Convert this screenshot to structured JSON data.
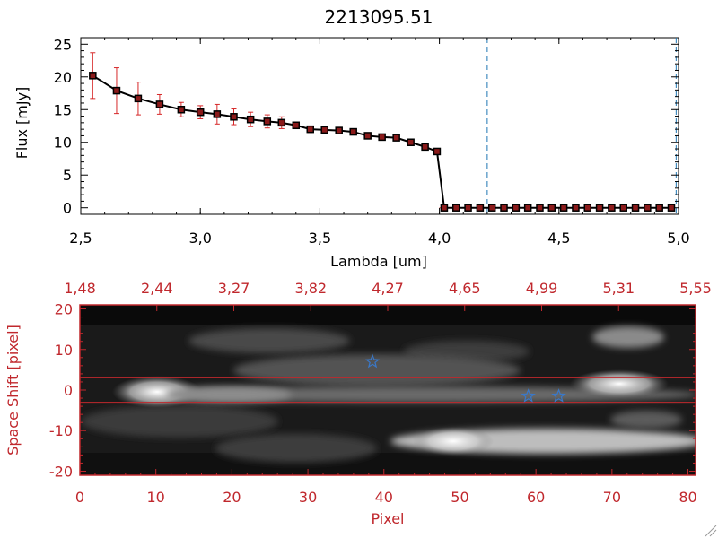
{
  "chart_data": [
    {
      "type": "line",
      "title": "2213095.51",
      "xlabel": "Lambda [um]",
      "ylabel": "Flux [mJy]",
      "xlim": [
        2.5,
        5.0
      ],
      "ylim": [
        -1,
        26
      ],
      "x_ticks": [
        "2.5",
        "3.0",
        "3.5",
        "4.0",
        "4.5",
        "5.0"
      ],
      "y_ticks": [
        "0",
        "5",
        "10",
        "15",
        "20",
        "25"
      ],
      "vlines": [
        4.2,
        4.99
      ],
      "series": [
        {
          "x": [
            2.55,
            2.65,
            2.74,
            2.83,
            2.92,
            3.0,
            3.07,
            3.14,
            3.21,
            3.28,
            3.34,
            3.4,
            3.46,
            3.52,
            3.58,
            3.64,
            3.7,
            3.76,
            3.82,
            3.88,
            3.94,
            3.99,
            4.02,
            4.07,
            4.12,
            4.17,
            4.22,
            4.27,
            4.32,
            4.37,
            4.42,
            4.47,
            4.52,
            4.57,
            4.62,
            4.67,
            4.72,
            4.77,
            4.82,
            4.87,
            4.92,
            4.97
          ],
          "y": [
            20.2,
            17.9,
            16.7,
            15.8,
            15.0,
            14.6,
            14.3,
            13.9,
            13.5,
            13.2,
            13.0,
            12.6,
            12.0,
            11.9,
            11.8,
            11.6,
            11.0,
            10.8,
            10.7,
            10.0,
            9.3,
            8.6,
            0.0,
            0.0,
            0.0,
            0.0,
            0.0,
            0.0,
            0.0,
            0.0,
            0.0,
            0.0,
            0.0,
            0.0,
            0.0,
            0.0,
            0.0,
            0.0,
            0.0,
            0.0,
            0.0,
            0.0
          ],
          "yerr": [
            3.5,
            3.5,
            2.5,
            1.5,
            1.1,
            1.0,
            1.5,
            1.2,
            1.1,
            1.0,
            0.9,
            0.5,
            0.5,
            0.5,
            0.5,
            0.4,
            0.4,
            0.4,
            0.4,
            0.4,
            0.4,
            0.3,
            0,
            0,
            0,
            0,
            0,
            0,
            0,
            0,
            0,
            0,
            0,
            0,
            0,
            0,
            0,
            0,
            0,
            0,
            0,
            0
          ]
        }
      ],
      "colors": {
        "line": "#000000",
        "marker": "#8b1a1a",
        "errorbar": "#d62728",
        "vline": "#1f77b4"
      }
    },
    {
      "type": "heatmap",
      "xlabel": "Pixel",
      "ylabel": "Space Shift [pixel]",
      "xlim": [
        0,
        81
      ],
      "ylim": [
        -21,
        21
      ],
      "x_ticks": [
        "0",
        "10",
        "20",
        "30",
        "40",
        "50",
        "60",
        "70",
        "80"
      ],
      "y_ticks": [
        "-20",
        "-10",
        "0",
        "10",
        "20"
      ],
      "top_ticks": [
        "1.48",
        "2.44",
        "3.27",
        "3.82",
        "4.27",
        "4.65",
        "4.99",
        "5.31",
        "5.55"
      ],
      "hlines": [
        3,
        -3
      ],
      "stars": [
        {
          "x": 38.5,
          "y": 7
        },
        {
          "x": 59,
          "y": -1.5
        },
        {
          "x": 63,
          "y": -1.5
        }
      ],
      "colors": {
        "axis": "#c0282d",
        "star": "#3a78c8",
        "hline": "#c0282d"
      }
    }
  ]
}
